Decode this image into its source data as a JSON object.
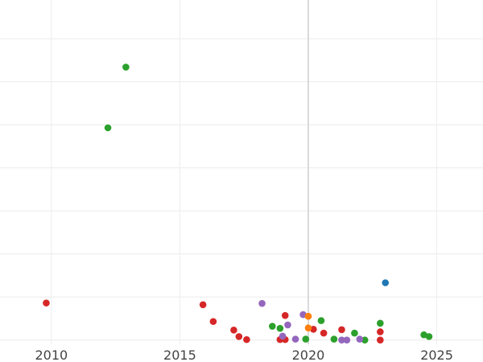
{
  "chart_data": {
    "type": "scatter",
    "title": "",
    "xlabel": "",
    "ylabel": "",
    "grid": true,
    "x_ticks": [
      2010,
      2015,
      2020,
      2025
    ],
    "y_ticks": [
      0,
      0.1,
      0.2,
      0.3,
      0.4,
      0.5,
      0.6,
      0.7,
      0.8
    ],
    "xlim": [
      2008.0,
      2026.8
    ],
    "ylim": [
      -0.01,
      0.79
    ],
    "x_tick_labels": [
      "2010",
      "2015",
      "2020",
      "2025"
    ],
    "highlight_x": 2020,
    "series": [
      {
        "color": "#2ca02c",
        "points": [
          [
            2012.9,
            0.634
          ],
          [
            2012.2,
            0.493
          ],
          [
            2018.6,
            0.032
          ],
          [
            2018.9,
            0.027
          ],
          [
            2019.9,
            0.002
          ],
          [
            2020.5,
            0.045
          ],
          [
            2021.0,
            0.002
          ],
          [
            2021.8,
            0.016
          ],
          [
            2022.2,
            0.0
          ],
          [
            2022.8,
            0.039
          ],
          [
            2024.5,
            0.012
          ],
          [
            2024.7,
            0.008
          ]
        ]
      },
      {
        "color": "#d62728",
        "points": [
          [
            2009.8,
            0.086
          ],
          [
            2015.9,
            0.082
          ],
          [
            2016.3,
            0.043
          ],
          [
            2017.1,
            0.023
          ],
          [
            2017.3,
            0.008
          ],
          [
            2017.6,
            0.001
          ],
          [
            2018.9,
            0.001
          ],
          [
            2019.1,
            0.001
          ],
          [
            2019.1,
            0.057
          ],
          [
            2020.2,
            0.025
          ],
          [
            2020.6,
            0.016
          ],
          [
            2021.3,
            0.024
          ],
          [
            2022.8,
            0.019
          ],
          [
            2022.8,
            0.0
          ]
        ]
      },
      {
        "color": "#9467bd",
        "points": [
          [
            2018.2,
            0.085
          ],
          [
            2019.0,
            0.009
          ],
          [
            2019.2,
            0.035
          ],
          [
            2019.5,
            0.002
          ],
          [
            2019.8,
            0.059
          ],
          [
            2021.3,
            0.0
          ],
          [
            2021.5,
            0.0
          ],
          [
            2022.0,
            0.002
          ]
        ]
      },
      {
        "color": "#ff7f0e",
        "points": [
          [
            2020.0,
            0.055
          ],
          [
            2020.0,
            0.028
          ]
        ]
      },
      {
        "color": "#1f77b4",
        "points": [
          [
            2023.0,
            0.133
          ]
        ]
      }
    ]
  }
}
